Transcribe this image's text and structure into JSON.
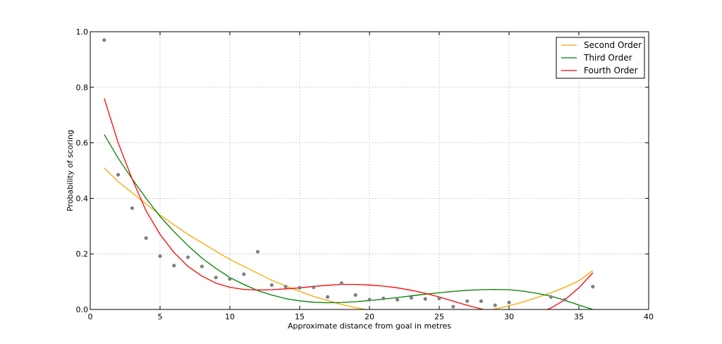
{
  "chart_data": {
    "type": "scatter",
    "xlabel": "Approximate distance from goal in metres",
    "ylabel": "Probability of scoring",
    "xlim": [
      0,
      40
    ],
    "ylim": [
      0,
      1.0
    ],
    "xticks": [
      0,
      5,
      10,
      15,
      20,
      25,
      30,
      35,
      40
    ],
    "xtick_labels": [
      "0",
      "5",
      "10",
      "15",
      "20",
      "25",
      "30",
      "35",
      "40"
    ],
    "yticks": [
      0.0,
      0.2,
      0.4,
      0.6,
      0.8,
      1.0
    ],
    "ytick_labels": [
      "0.0",
      "0.2",
      "0.4",
      "0.6",
      "0.8",
      "1.0"
    ],
    "grid": true,
    "legend_position": "top-right",
    "points": {
      "color": "#808080",
      "x": [
        1,
        2,
        3,
        4,
        5,
        6,
        7,
        8,
        9,
        10,
        11,
        12,
        13,
        14,
        15,
        16,
        17,
        18,
        19,
        20,
        21,
        22,
        23,
        24,
        25,
        26,
        27,
        28,
        29,
        30,
        33,
        34,
        36
      ],
      "y": [
        0.97,
        0.485,
        0.365,
        0.257,
        0.192,
        0.158,
        0.188,
        0.155,
        0.115,
        0.11,
        0.127,
        0.208,
        0.088,
        0.082,
        0.078,
        0.08,
        0.045,
        0.095,
        0.052,
        0.035,
        0.04,
        0.035,
        0.042,
        0.038,
        0.04,
        0.01,
        0.03,
        0.03,
        0.015,
        0.025,
        0.045,
        0.035,
        0.082
      ]
    },
    "series": [
      {
        "name": "Second Order",
        "color": "#ffa500",
        "x": [
          1,
          2,
          3,
          4,
          5,
          6,
          7,
          8,
          9,
          10,
          11,
          12,
          13,
          14,
          15,
          16,
          17,
          18,
          19,
          20,
          21,
          22,
          23,
          24,
          25,
          26,
          27,
          28,
          29,
          30,
          31,
          32,
          33,
          34,
          35,
          36
        ],
        "y": [
          0.51,
          0.46,
          0.42,
          0.38,
          0.34,
          0.305,
          0.27,
          0.24,
          0.21,
          0.18,
          0.155,
          0.13,
          0.105,
          0.085,
          0.065,
          0.047,
          0.032,
          0.018,
          0.007,
          -0.003,
          -0.01,
          -0.015,
          -0.02,
          -0.022,
          -0.022,
          -0.02,
          -0.015,
          -0.008,
          0.002,
          0.013,
          0.027,
          0.043,
          0.06,
          0.08,
          0.103,
          0.14
        ]
      },
      {
        "name": "Third Order",
        "color": "#008000",
        "x": [
          1,
          2,
          3,
          4,
          5,
          6,
          7,
          8,
          9,
          10,
          11,
          12,
          13,
          14,
          15,
          16,
          17,
          18,
          19,
          20,
          21,
          22,
          23,
          24,
          25,
          26,
          27,
          28,
          29,
          30,
          31,
          32,
          33,
          34,
          35,
          36
        ],
        "y": [
          0.63,
          0.545,
          0.47,
          0.4,
          0.335,
          0.28,
          0.23,
          0.185,
          0.148,
          0.115,
          0.09,
          0.068,
          0.052,
          0.039,
          0.031,
          0.026,
          0.024,
          0.025,
          0.028,
          0.032,
          0.037,
          0.043,
          0.049,
          0.055,
          0.06,
          0.065,
          0.069,
          0.071,
          0.072,
          0.071,
          0.066,
          0.058,
          0.048,
          0.033,
          0.016,
          0.0
        ]
      },
      {
        "name": "Fourth Order",
        "color": "#ff0000",
        "x": [
          1,
          2,
          3,
          4,
          5,
          6,
          7,
          8,
          9,
          10,
          11,
          12,
          13,
          14,
          15,
          16,
          17,
          18,
          19,
          20,
          21,
          22,
          23,
          24,
          25,
          26,
          27,
          28,
          29,
          30,
          31,
          32,
          33,
          34,
          35,
          36
        ],
        "y": [
          0.76,
          0.6,
          0.47,
          0.355,
          0.27,
          0.205,
          0.155,
          0.12,
          0.095,
          0.08,
          0.072,
          0.07,
          0.071,
          0.074,
          0.078,
          0.083,
          0.087,
          0.09,
          0.09,
          0.088,
          0.084,
          0.078,
          0.069,
          0.058,
          0.045,
          0.03,
          0.015,
          0.002,
          -0.01,
          -0.018,
          -0.02,
          -0.014,
          0.005,
          0.035,
          0.078,
          0.132
        ]
      }
    ]
  }
}
